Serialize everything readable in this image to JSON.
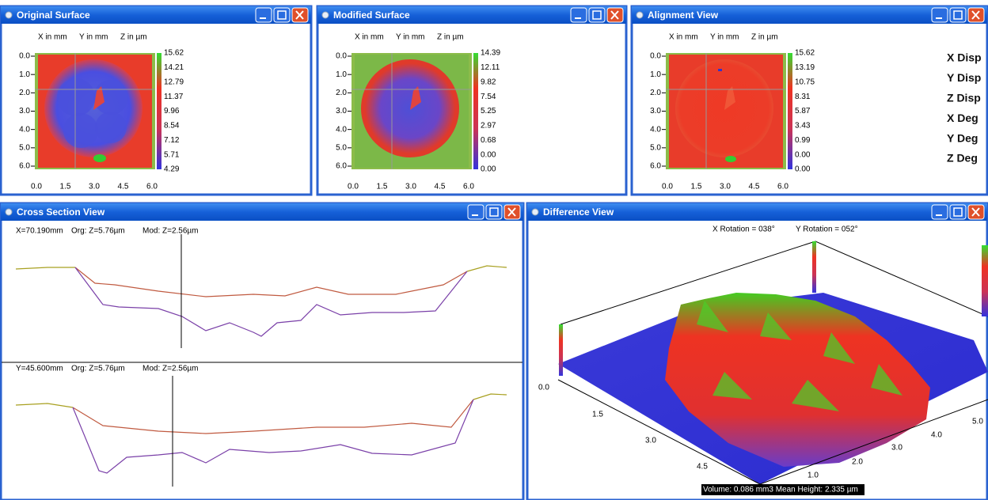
{
  "windows": [
    {
      "title": "Original Surface",
      "axis_header": [
        "X in mm",
        "Y in mm",
        "Z in µm"
      ],
      "y_labels": [
        "0.0",
        "1.0",
        "2.0",
        "3.0",
        "4.0",
        "5.0",
        "6.0"
      ],
      "x_labels": [
        "0.0",
        "1.5",
        "3.0",
        "4.5",
        "6.0"
      ],
      "colorbar_labels": [
        "15.62",
        "14.21",
        "12.79",
        "11.37",
        "9.96",
        "8.54",
        "7.12",
        "5.71",
        "4.29"
      ]
    },
    {
      "title": "Modified Surface",
      "axis_header": [
        "X in mm",
        "Y in mm",
        "Z in µm"
      ],
      "y_labels": [
        "0.0",
        "1.0",
        "2.0",
        "3.0",
        "4.0",
        "5.0",
        "6.0"
      ],
      "x_labels": [
        "0.0",
        "1.5",
        "3.0",
        "4.5",
        "6.0"
      ],
      "colorbar_labels": [
        "14.39",
        "12.11",
        "9.82",
        "7.54",
        "5.25",
        "2.97",
        "0.68",
        "0.00",
        "0.00"
      ]
    },
    {
      "title": "Alignment View",
      "axis_header": [
        "X in mm",
        "Y in mm",
        "Z in µm"
      ],
      "y_labels": [
        "0.0",
        "1.0",
        "2.0",
        "3.0",
        "4.0",
        "5.0",
        "6.0"
      ],
      "x_labels": [
        "0.0",
        "1.5",
        "3.0",
        "4.5",
        "6.0"
      ],
      "colorbar_labels": [
        "15.62",
        "13.19",
        "10.75",
        "8.31",
        "5.87",
        "3.43",
        "0.99",
        "0.00",
        "0.00"
      ]
    }
  ],
  "alignment_controls": [
    "X Disp",
    "Y Disp",
    "Z Disp",
    "X Deg",
    "Y Deg",
    "Z Deg"
  ],
  "cross_section": {
    "title": "Cross Section View",
    "panels": [
      {
        "position": "X=70.190mm",
        "org": "Org: Z=5.76µm",
        "mod": "Mod: Z=2.56µm"
      },
      {
        "position": "Y=45.600mm",
        "org": "Org: Z=5.76µm",
        "mod": "Mod: Z=2.56µm"
      }
    ]
  },
  "difference": {
    "title": "Difference View",
    "x_rotation": "X Rotation = 038°",
    "y_rotation": "Y Rotation = 052°",
    "left_axis_labels": [
      "0.0",
      "1.5",
      "3.0",
      "4.5"
    ],
    "right_axis_labels": [
      "1.0",
      "2.0",
      "3.0",
      "4.0",
      "5.0"
    ],
    "footer": "Volume: 0.086 mm3 Mean Height: 2.335 µm"
  }
}
